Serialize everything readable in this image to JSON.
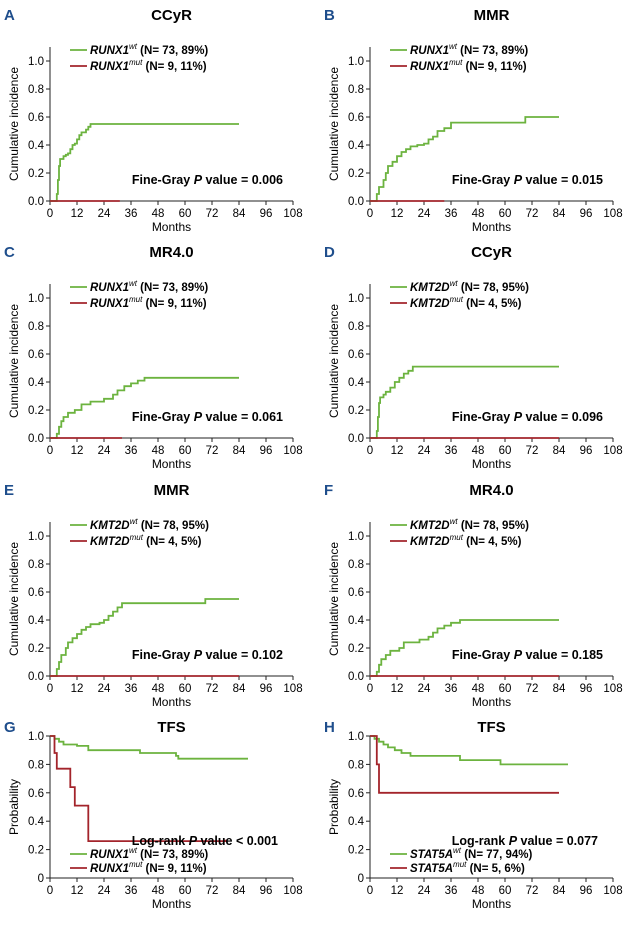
{
  "colors": {
    "wt": "#6cb33f",
    "mut": "#a3242b",
    "axis": "#222222",
    "letter": "#1f4e8c",
    "text": "#000000"
  },
  "chart_data": [
    {
      "letter": "A",
      "type": "line",
      "title": "CCyR",
      "xlabel": "Months",
      "ylabel": "Cumulative incidence",
      "xlim": [
        0,
        108
      ],
      "xticks": [
        0,
        12,
        24,
        36,
        48,
        60,
        72,
        84,
        96,
        108
      ],
      "ylim": [
        0,
        1.1
      ],
      "yticks": [
        0,
        0.2,
        0.4,
        0.6,
        0.8,
        1.0
      ],
      "ytick_labels": [
        "0.0",
        "0.2",
        "0.4",
        "0.6",
        "0.8",
        "1.0"
      ],
      "legend": [
        {
          "gene": "RUNX1",
          "sup": "wt",
          "text": " (N= 73, 89%)"
        },
        {
          "gene": "RUNX1",
          "sup": "mut",
          "text": " (N= 9, 11%)"
        }
      ],
      "stat": {
        "pre": "Fine-Gray ",
        "p": "P",
        "post": " value = 0.006"
      },
      "series": [
        {
          "name": "RUNX1 wt",
          "step": [
            [
              0,
              0
            ],
            [
              3,
              0.05
            ],
            [
              3.5,
              0.15
            ],
            [
              4,
              0.25
            ],
            [
              4.5,
              0.3
            ],
            [
              6,
              0.32
            ],
            [
              7,
              0.33
            ],
            [
              8,
              0.34
            ],
            [
              9,
              0.37
            ],
            [
              10,
              0.4
            ],
            [
              11,
              0.41
            ],
            [
              12,
              0.44
            ],
            [
              13,
              0.47
            ],
            [
              14,
              0.49
            ],
            [
              16,
              0.51
            ],
            [
              17,
              0.53
            ],
            [
              18,
              0.55
            ],
            [
              84,
              0.55
            ]
          ]
        },
        {
          "name": "RUNX1 mut",
          "step": [
            [
              0,
              0
            ],
            [
              31,
              0
            ]
          ]
        }
      ]
    },
    {
      "letter": "B",
      "type": "line",
      "title": "MMR",
      "xlabel": "Months",
      "ylabel": "Cumulative incidence",
      "xlim": [
        0,
        108
      ],
      "xticks": [
        0,
        12,
        24,
        36,
        48,
        60,
        72,
        84,
        96,
        108
      ],
      "ylim": [
        0,
        1.1
      ],
      "yticks": [
        0,
        0.2,
        0.4,
        0.6,
        0.8,
        1.0
      ],
      "ytick_labels": [
        "0.0",
        "0.2",
        "0.4",
        "0.6",
        "0.8",
        "1.0"
      ],
      "legend": [
        {
          "gene": "RUNX1",
          "sup": "wt",
          "text": " (N= 73, 89%)"
        },
        {
          "gene": "RUNX1",
          "sup": "mut",
          "text": " (N= 9, 11%)"
        }
      ],
      "stat": {
        "pre": "Fine-Gray ",
        "p": "P",
        "post": " value = 0.015"
      },
      "series": [
        {
          "name": "RUNX1 wt",
          "step": [
            [
              0,
              0
            ],
            [
              3,
              0.05
            ],
            [
              4,
              0.1
            ],
            [
              6,
              0.15
            ],
            [
              7,
              0.2
            ],
            [
              8,
              0.25
            ],
            [
              10,
              0.28
            ],
            [
              12,
              0.32
            ],
            [
              14,
              0.35
            ],
            [
              16,
              0.37
            ],
            [
              18,
              0.39
            ],
            [
              21,
              0.4
            ],
            [
              24,
              0.41
            ],
            [
              26,
              0.44
            ],
            [
              28,
              0.46
            ],
            [
              30,
              0.5
            ],
            [
              33,
              0.52
            ],
            [
              36,
              0.56
            ],
            [
              68,
              0.56
            ],
            [
              69,
              0.6
            ],
            [
              84,
              0.6
            ]
          ]
        },
        {
          "name": "RUNX1 mut",
          "step": [
            [
              0,
              0
            ],
            [
              33,
              0
            ]
          ]
        }
      ]
    },
    {
      "letter": "C",
      "type": "line",
      "title": "MR4.0",
      "xlabel": "Months",
      "ylabel": "Cumulative incidence",
      "xlim": [
        0,
        108
      ],
      "xticks": [
        0,
        12,
        24,
        36,
        48,
        60,
        72,
        84,
        96,
        108
      ],
      "ylim": [
        0,
        1.1
      ],
      "yticks": [
        0,
        0.2,
        0.4,
        0.6,
        0.8,
        1.0
      ],
      "ytick_labels": [
        "0.0",
        "0.2",
        "0.4",
        "0.6",
        "0.8",
        "1.0"
      ],
      "legend": [
        {
          "gene": "RUNX1",
          "sup": "wt",
          "text": " (N= 73, 89%)"
        },
        {
          "gene": "RUNX1",
          "sup": "mut",
          "text": " (N= 9, 11%)"
        }
      ],
      "stat": {
        "pre": "Fine-Gray ",
        "p": "P",
        "post": " value = 0.061"
      },
      "series": [
        {
          "name": "RUNX1 wt",
          "step": [
            [
              0,
              0
            ],
            [
              3,
              0.03
            ],
            [
              4,
              0.08
            ],
            [
              5,
              0.12
            ],
            [
              6,
              0.15
            ],
            [
              8,
              0.18
            ],
            [
              11,
              0.2
            ],
            [
              14,
              0.24
            ],
            [
              18,
              0.26
            ],
            [
              24,
              0.28
            ],
            [
              28,
              0.31
            ],
            [
              30,
              0.34
            ],
            [
              33,
              0.37
            ],
            [
              36,
              0.39
            ],
            [
              39,
              0.41
            ],
            [
              42,
              0.43
            ],
            [
              84,
              0.43
            ]
          ]
        },
        {
          "name": "RUNX1 mut",
          "step": [
            [
              0,
              0
            ],
            [
              32,
              0
            ]
          ]
        }
      ]
    },
    {
      "letter": "D",
      "type": "line",
      "title": "CCyR",
      "xlabel": "Months",
      "ylabel": "Cumulative incidence",
      "xlim": [
        0,
        108
      ],
      "xticks": [
        0,
        12,
        24,
        36,
        48,
        60,
        72,
        84,
        96,
        108
      ],
      "ylim": [
        0,
        1.1
      ],
      "yticks": [
        0,
        0.2,
        0.4,
        0.6,
        0.8,
        1.0
      ],
      "ytick_labels": [
        "0.0",
        "0.2",
        "0.4",
        "0.6",
        "0.8",
        "1.0"
      ],
      "legend": [
        {
          "gene": "KMT2D",
          "sup": "wt",
          "text": " (N= 78, 95%)"
        },
        {
          "gene": "KMT2D",
          "sup": "mut",
          "text": " (N= 4, 5%)"
        }
      ],
      "stat": {
        "pre": "Fine-Gray ",
        "p": "P",
        "post": " value = 0.096"
      },
      "series": [
        {
          "name": "KMT2D wt",
          "step": [
            [
              0,
              0
            ],
            [
              3,
              0.05
            ],
            [
              3.5,
              0.15
            ],
            [
              4,
              0.25
            ],
            [
              4.5,
              0.29
            ],
            [
              6,
              0.31
            ],
            [
              7,
              0.33
            ],
            [
              9,
              0.36
            ],
            [
              11,
              0.4
            ],
            [
              13,
              0.43
            ],
            [
              15,
              0.46
            ],
            [
              17,
              0.48
            ],
            [
              19,
              0.51
            ],
            [
              84,
              0.51
            ]
          ]
        },
        {
          "name": "KMT2D mut",
          "step": [
            [
              0,
              0
            ],
            [
              84,
              0
            ]
          ]
        }
      ]
    },
    {
      "letter": "E",
      "type": "line",
      "title": "MMR",
      "xlabel": "Months",
      "ylabel": "Cumulative incidence",
      "xlim": [
        0,
        108
      ],
      "xticks": [
        0,
        12,
        24,
        36,
        48,
        60,
        72,
        84,
        96,
        108
      ],
      "ylim": [
        0,
        1.1
      ],
      "yticks": [
        0,
        0.2,
        0.4,
        0.6,
        0.8,
        1.0
      ],
      "ytick_labels": [
        "0.0",
        "0.2",
        "0.4",
        "0.6",
        "0.8",
        "1.0"
      ],
      "legend": [
        {
          "gene": "KMT2D",
          "sup": "wt",
          "text": " (N= 78, 95%)"
        },
        {
          "gene": "KMT2D",
          "sup": "mut",
          "text": " (N= 4, 5%)"
        }
      ],
      "stat": {
        "pre": "Fine-Gray ",
        "p": "P",
        "post": " value = 0.102"
      },
      "series": [
        {
          "name": "KMT2D wt",
          "step": [
            [
              0,
              0
            ],
            [
              3,
              0.05
            ],
            [
              4,
              0.1
            ],
            [
              5,
              0.15
            ],
            [
              7,
              0.2
            ],
            [
              8,
              0.24
            ],
            [
              10,
              0.27
            ],
            [
              12,
              0.3
            ],
            [
              14,
              0.33
            ],
            [
              16,
              0.35
            ],
            [
              18,
              0.37
            ],
            [
              22,
              0.38
            ],
            [
              24,
              0.4
            ],
            [
              26,
              0.43
            ],
            [
              28,
              0.46
            ],
            [
              30,
              0.49
            ],
            [
              32,
              0.52
            ],
            [
              68,
              0.52
            ],
            [
              69,
              0.55
            ],
            [
              84,
              0.55
            ]
          ]
        },
        {
          "name": "KMT2D mut",
          "step": [
            [
              0,
              0
            ],
            [
              84,
              0
            ]
          ]
        }
      ]
    },
    {
      "letter": "F",
      "type": "line",
      "title": "MR4.0",
      "xlabel": "Months",
      "ylabel": "Cumulative incidence",
      "xlim": [
        0,
        108
      ],
      "xticks": [
        0,
        12,
        24,
        36,
        48,
        60,
        72,
        84,
        96,
        108
      ],
      "ylim": [
        0,
        1.1
      ],
      "yticks": [
        0,
        0.2,
        0.4,
        0.6,
        0.8,
        1.0
      ],
      "ytick_labels": [
        "0.0",
        "0.2",
        "0.4",
        "0.6",
        "0.8",
        "1.0"
      ],
      "legend": [
        {
          "gene": "KMT2D",
          "sup": "wt",
          "text": " (N= 78, 95%)"
        },
        {
          "gene": "KMT2D",
          "sup": "mut",
          "text": " (N= 4, 5%)"
        }
      ],
      "stat": {
        "pre": "Fine-Gray ",
        "p": "P",
        "post": " value = 0.185"
      },
      "series": [
        {
          "name": "KMT2D wt",
          "step": [
            [
              0,
              0
            ],
            [
              3,
              0.03
            ],
            [
              4,
              0.08
            ],
            [
              5,
              0.12
            ],
            [
              7,
              0.15
            ],
            [
              9,
              0.18
            ],
            [
              13,
              0.2
            ],
            [
              15,
              0.24
            ],
            [
              20,
              0.24
            ],
            [
              22,
              0.26
            ],
            [
              26,
              0.28
            ],
            [
              28,
              0.31
            ],
            [
              30,
              0.34
            ],
            [
              33,
              0.36
            ],
            [
              36,
              0.38
            ],
            [
              40,
              0.4
            ],
            [
              84,
              0.4
            ]
          ]
        },
        {
          "name": "KMT2D mut",
          "step": [
            [
              0,
              0
            ],
            [
              84,
              0
            ]
          ]
        }
      ]
    },
    {
      "letter": "G",
      "type": "line",
      "title": "TFS",
      "xlabel": "Months",
      "ylabel": "Probability",
      "xlim": [
        0,
        108
      ],
      "xticks": [
        0,
        12,
        24,
        36,
        48,
        60,
        72,
        84,
        96,
        108
      ],
      "ylim": [
        0,
        1.0
      ],
      "yticks": [
        0,
        0.2,
        0.4,
        0.6,
        0.8,
        1.0
      ],
      "ytick_labels": [
        "0",
        "0.2",
        "0.4",
        "0.6",
        "0.8",
        "1.0"
      ],
      "legend": [
        {
          "gene": "RUNX1",
          "sup": "wt",
          "text": " (N= 73, 89%)"
        },
        {
          "gene": "RUNX1",
          "sup": "mut",
          "text": " (N= 9, 11%)"
        }
      ],
      "stat": {
        "pre": "Log-rank ",
        "p": "P",
        "post": " value < 0.001"
      },
      "series": [
        {
          "name": "RUNX1 wt",
          "step": [
            [
              0,
              1.0
            ],
            [
              2,
              0.98
            ],
            [
              4,
              0.96
            ],
            [
              6,
              0.94
            ],
            [
              12,
              0.93
            ],
            [
              17,
              0.9
            ],
            [
              39,
              0.9
            ],
            [
              40,
              0.88
            ],
            [
              56,
              0.86
            ],
            [
              57,
              0.84
            ],
            [
              88,
              0.84
            ]
          ]
        },
        {
          "name": "RUNX1 mut",
          "step": [
            [
              0,
              1.0
            ],
            [
              2,
              0.88
            ],
            [
              3,
              0.77
            ],
            [
              8,
              0.77
            ],
            [
              9,
              0.64
            ],
            [
              11,
              0.51
            ],
            [
              16,
              0.51
            ],
            [
              17,
              0.26
            ],
            [
              77,
              0.26
            ],
            [
              78,
              0.27
            ]
          ]
        }
      ]
    },
    {
      "letter": "H",
      "type": "line",
      "title": "TFS",
      "xlabel": "Months",
      "ylabel": "Probability",
      "xlim": [
        0,
        108
      ],
      "xticks": [
        0,
        12,
        24,
        36,
        48,
        60,
        72,
        84,
        96,
        108
      ],
      "ylim": [
        0,
        1.0
      ],
      "yticks": [
        0,
        0.2,
        0.4,
        0.6,
        0.8,
        1.0
      ],
      "ytick_labels": [
        "0",
        "0.2",
        "0.4",
        "0.6",
        "0.8",
        "1.0"
      ],
      "legend": [
        {
          "gene": "STAT5A",
          "sup": "wt",
          "text": " (N= 77, 94%)"
        },
        {
          "gene": "STAT5A",
          "sup": "mut",
          "text": " (N= 5, 6%)"
        }
      ],
      "stat": {
        "pre": "Log-rank ",
        "p": "P",
        "post": " value = 0.077"
      },
      "series": [
        {
          "name": "STAT5A wt",
          "step": [
            [
              0,
              1.0
            ],
            [
              2,
              0.98
            ],
            [
              4,
              0.96
            ],
            [
              6,
              0.94
            ],
            [
              8,
              0.92
            ],
            [
              11,
              0.9
            ],
            [
              14,
              0.88
            ],
            [
              18,
              0.86
            ],
            [
              38,
              0.86
            ],
            [
              40,
              0.83
            ],
            [
              56,
              0.83
            ],
            [
              58,
              0.8
            ],
            [
              88,
              0.8
            ]
          ]
        },
        {
          "name": "STAT5A mut",
          "step": [
            [
              0,
              1.0
            ],
            [
              3,
              0.8
            ],
            [
              4,
              0.6
            ],
            [
              84,
              0.6
            ]
          ]
        }
      ]
    }
  ]
}
